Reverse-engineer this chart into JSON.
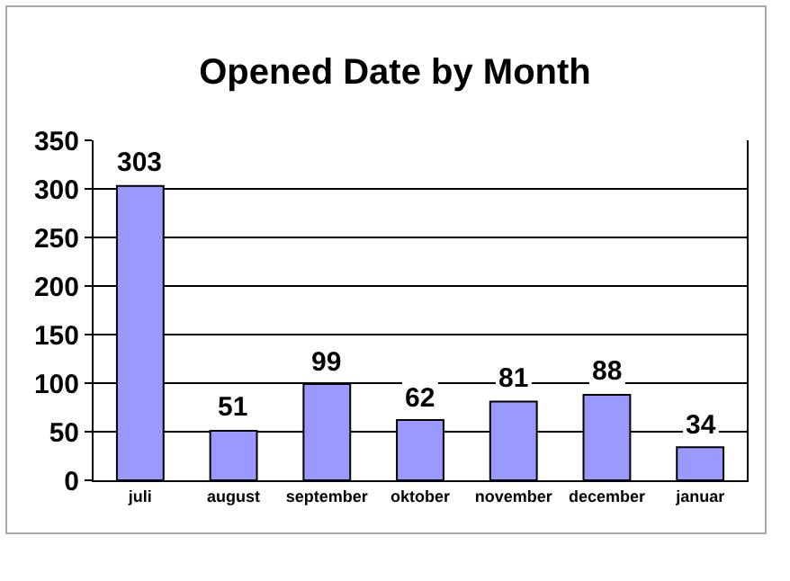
{
  "chart_data": {
    "type": "bar",
    "title": "Opened Date by Month",
    "categories": [
      "juli",
      "august",
      "september",
      "oktober",
      "november",
      "december",
      "januar"
    ],
    "values": [
      303,
      51,
      99,
      62,
      81,
      88,
      34
    ],
    "color": "#9999ff",
    "ylim": [
      0,
      350
    ],
    "yticks": [
      0,
      50,
      100,
      150,
      200,
      250,
      300,
      350
    ],
    "grid": "y",
    "data_labels": true,
    "legend": false
  }
}
